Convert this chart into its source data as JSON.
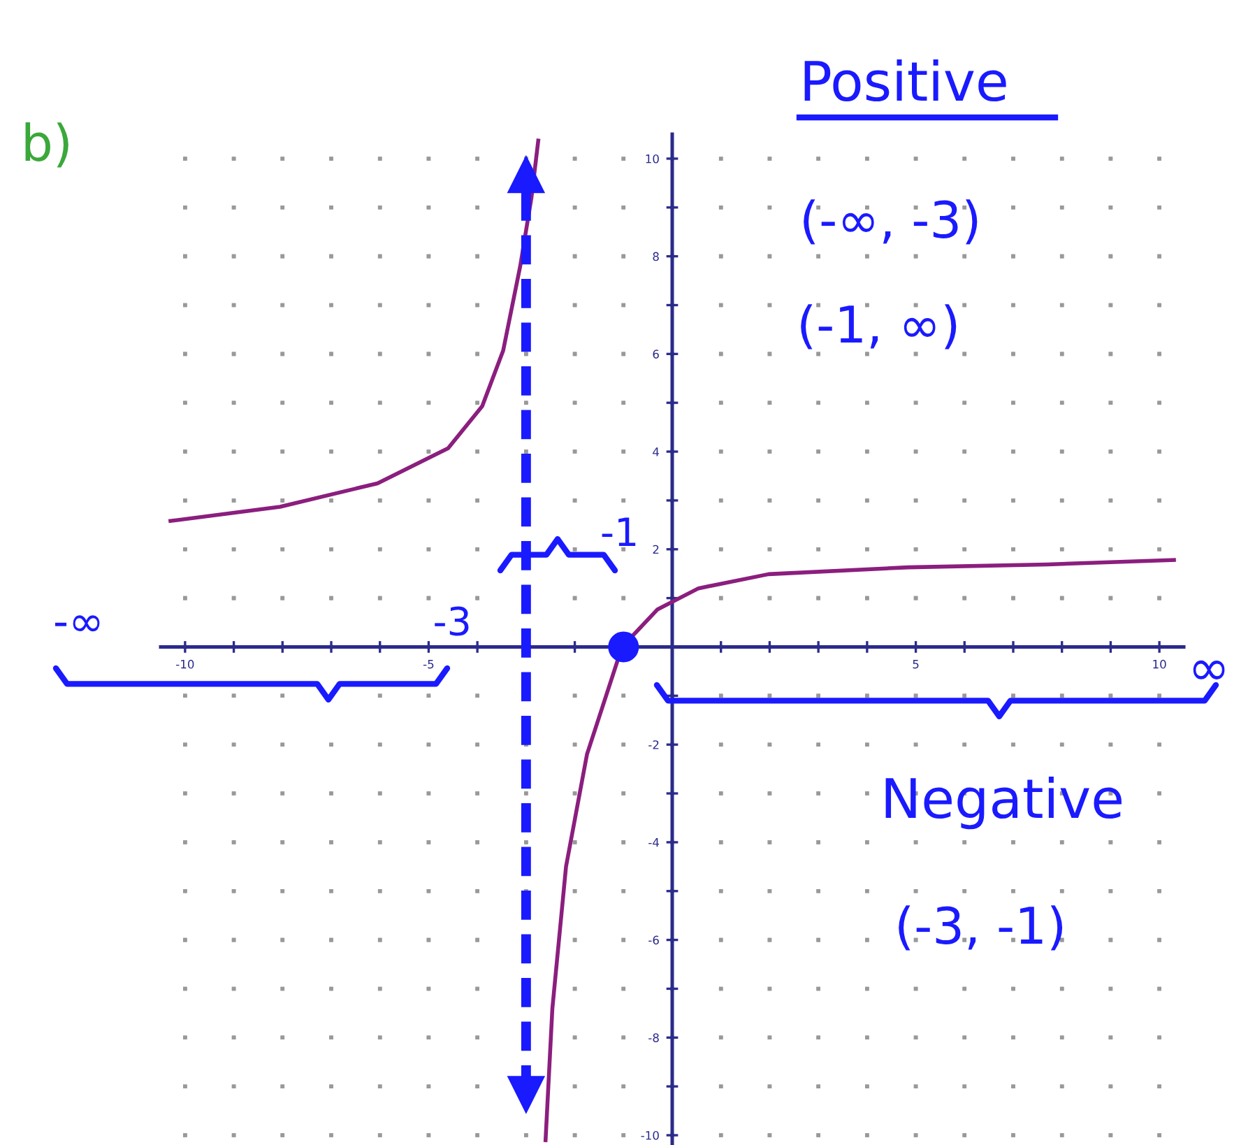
{
  "chart_data": {
    "type": "line",
    "title": "b)",
    "xlim": [
      -10.5,
      10.5
    ],
    "ylim": [
      -10.2,
      10.5
    ],
    "xticks": [
      {
        "value": -10,
        "label": "-10"
      },
      {
        "value": -9,
        "label": null
      },
      {
        "value": -8,
        "label": null
      },
      {
        "value": -7,
        "label": null
      },
      {
        "value": -6,
        "label": null
      },
      {
        "value": -5,
        "label": "-5"
      },
      {
        "value": -4,
        "label": null
      },
      {
        "value": -3,
        "label": null
      },
      {
        "value": -2,
        "label": null
      },
      {
        "value": -1,
        "label": null
      },
      {
        "value": 1,
        "label": null
      },
      {
        "value": 2,
        "label": null
      },
      {
        "value": 3,
        "label": null
      },
      {
        "value": 4,
        "label": null
      },
      {
        "value": 5,
        "label": "5"
      },
      {
        "value": 6,
        "label": null
      },
      {
        "value": 7,
        "label": null
      },
      {
        "value": 8,
        "label": null
      },
      {
        "value": 9,
        "label": null
      },
      {
        "value": 10,
        "label": "10"
      }
    ],
    "yticks": [
      {
        "value": -10,
        "label": "-10"
      },
      {
        "value": -9,
        "label": null
      },
      {
        "value": -8,
        "label": "-8"
      },
      {
        "value": -7,
        "label": null
      },
      {
        "value": -6,
        "label": "-6"
      },
      {
        "value": -5,
        "label": null
      },
      {
        "value": -4,
        "label": "-4"
      },
      {
        "value": -3,
        "label": null
      },
      {
        "value": -2,
        "label": "-2"
      },
      {
        "value": -1,
        "label": null
      },
      {
        "value": 1,
        "label": null
      },
      2,
      {
        "value": 3,
        "label": null
      },
      4,
      {
        "value": 5,
        "label": null
      },
      6,
      {
        "value": 7,
        "label": null
      },
      8,
      {
        "value": 9,
        "label": null
      },
      10
    ],
    "grid": true,
    "series": [
      {
        "color": "#8b1e7e",
        "x": [
          -10.3,
          -8.05,
          -6.05,
          -4.6,
          -3.9,
          -3.47,
          -3.12,
          -2.89,
          -2.75,
          -2.7,
          -2.6,
          -2.46,
          -2.18,
          -1.75,
          -1.03,
          -0.3,
          0.54,
          1.98,
          4.84,
          7.7,
          10.3
        ],
        "values": [
          2.58,
          2.87,
          3.35,
          4.07,
          4.93,
          6.07,
          7.8,
          9.2,
          10.37,
          null,
          -10.1,
          -7.4,
          -4.5,
          -2.2,
          0,
          0.77,
          1.2,
          1.49,
          1.63,
          1.69,
          1.78
        ]
      },
      {
        "type": "scatter",
        "color": "#1a1aff",
        "marker": "circle",
        "x": [
          -1
        ],
        "values": [
          0
        ]
      }
    ],
    "ref_lines": [
      {
        "axis": "x",
        "value": -3,
        "color": "#1a1aff",
        "line_style": "dashed"
      }
    ],
    "annotations": [
      "Positive",
      "(-∞, -3)",
      "(-1, ∞)",
      "Negative",
      "(-3, -1)",
      "-∞",
      "∞",
      {
        "text": "-3",
        "x": -3,
        "y": 0
      },
      {
        "text": "-1",
        "x": -1,
        "y": 0
      }
    ]
  }
}
